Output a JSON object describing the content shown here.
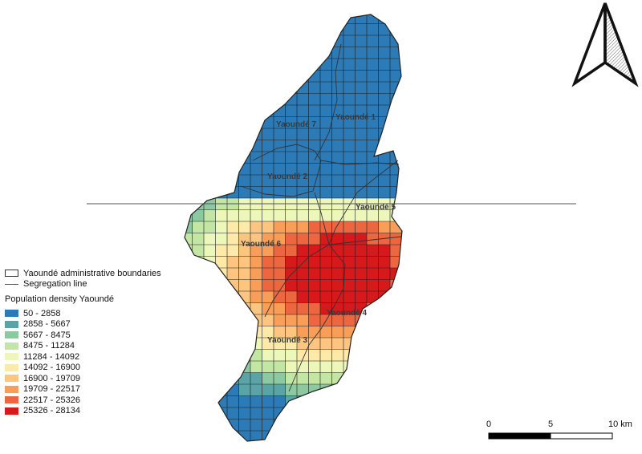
{
  "districts": [
    {
      "id": "yaounde-1",
      "label": "Yaoundé 1"
    },
    {
      "id": "yaounde-2",
      "label": "Yaoundé 2"
    },
    {
      "id": "yaounde-3",
      "label": "Yaoundé 3"
    },
    {
      "id": "yaounde-4",
      "label": "Yaoundé 4"
    },
    {
      "id": "yaounde-5",
      "label": "Yaoundé 5"
    },
    {
      "id": "yaounde-6",
      "label": "Yaoundé 6"
    },
    {
      "id": "yaounde-7",
      "label": "Yaoundé 7"
    }
  ],
  "legend": {
    "boundaries_label": "Yaoundé administrative boundaries",
    "segregation_label": "Segregation line",
    "density_title": "Population density Yaoundé",
    "classes": [
      {
        "label": "50 - 2858",
        "color": "#2c7bb6"
      },
      {
        "label": "2858 - 5667",
        "color": "#5aa4a8"
      },
      {
        "label": "5667 - 8475",
        "color": "#8cc9a0"
      },
      {
        "label": "8475 - 11284",
        "color": "#c4e6a4"
      },
      {
        "label": "11284 - 14092",
        "color": "#ecf7b9"
      },
      {
        "label": "14092 - 16900",
        "color": "#fde9a8"
      },
      {
        "label": "16900 - 19709",
        "color": "#fdc57f"
      },
      {
        "label": "19709 - 22517",
        "color": "#f99e59"
      },
      {
        "label": "22517 - 25326",
        "color": "#ec6640"
      },
      {
        "label": "25326 - 28134",
        "color": "#d7191c"
      }
    ]
  },
  "scale_bar": {
    "tick_0": "0",
    "tick_5": "5",
    "tick_10": "10 km"
  },
  "north_arrow": {
    "icon": "north-arrow-icon"
  }
}
